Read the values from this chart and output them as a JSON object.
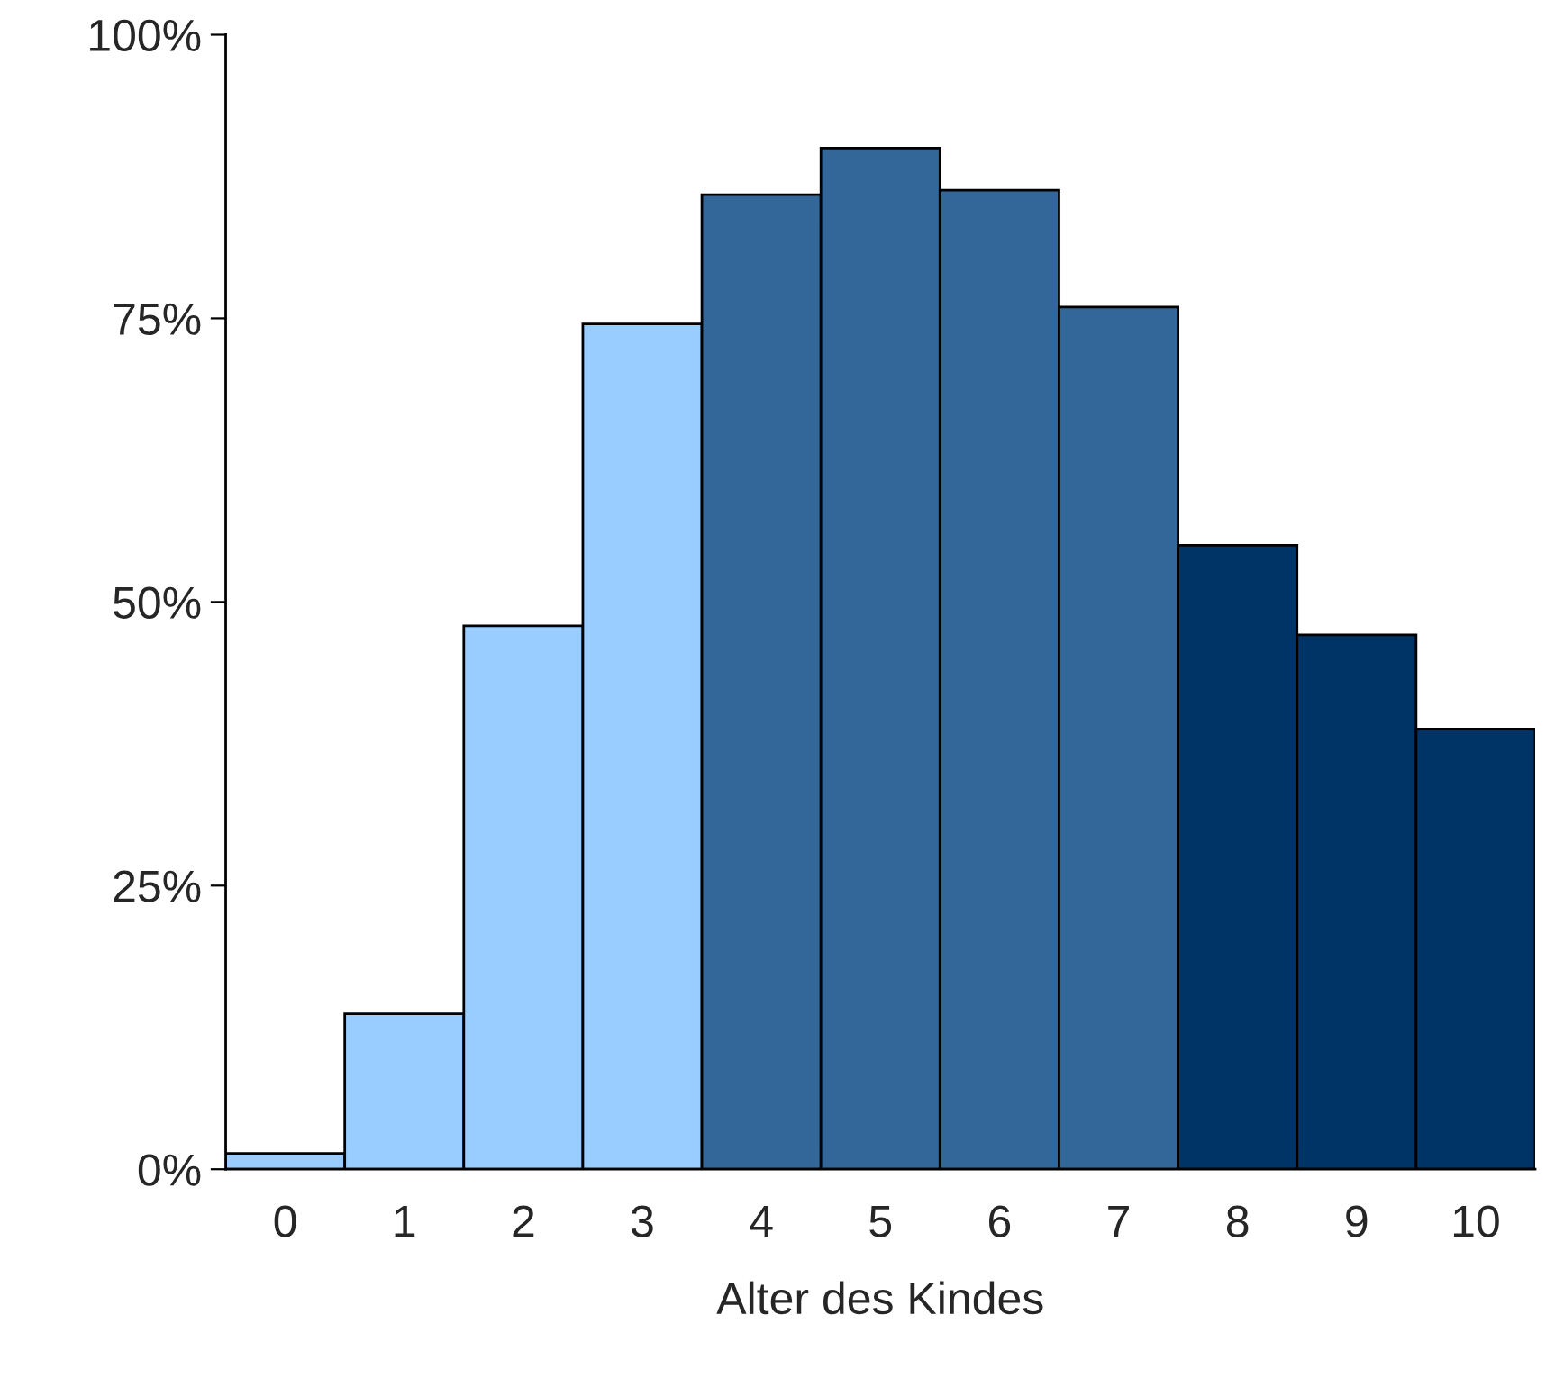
{
  "chart_data": {
    "type": "bar",
    "xlabel": "Alter des Kindes",
    "categories": [
      "0",
      "1",
      "2",
      "3",
      "4",
      "5",
      "6",
      "7",
      "8",
      "9",
      "10"
    ],
    "values": [
      1.4,
      13.7,
      47.9,
      74.5,
      85.9,
      90,
      86.3,
      76,
      55,
      47.1,
      38.8
    ],
    "colors": [
      "#99ccff",
      "#99ccff",
      "#99ccff",
      "#99ccff",
      "#336699",
      "#336699",
      "#336699",
      "#336699",
      "#003366",
      "#003366",
      "#003366"
    ],
    "ylim": [
      0,
      100
    ],
    "yticks": [
      {
        "value": 0,
        "label": "0%"
      },
      {
        "value": 25,
        "label": "25%"
      },
      {
        "value": 50,
        "label": "50%"
      },
      {
        "value": 75,
        "label": "75%"
      },
      {
        "value": 100,
        "label": "100%"
      }
    ],
    "grid": false
  }
}
